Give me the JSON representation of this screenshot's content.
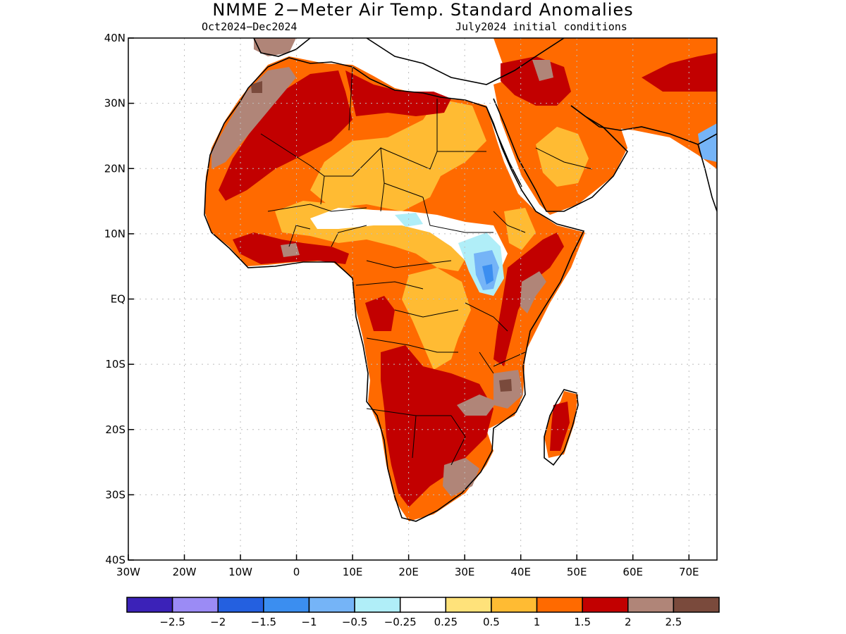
{
  "title": "NMME 2−Meter Air Temp. Standard Anomalies",
  "subtitle_left": "Oct2024−Dec2024",
  "subtitle_right": "July2024 initial conditions",
  "map": {
    "lon_range": [
      -30,
      75
    ],
    "lat_range": [
      -40,
      40
    ],
    "lat_ticks": [
      {
        "value": 40,
        "label": "40N"
      },
      {
        "value": 30,
        "label": "30N"
      },
      {
        "value": 20,
        "label": "20N"
      },
      {
        "value": 10,
        "label": "10N"
      },
      {
        "value": 0,
        "label": "EQ"
      },
      {
        "value": -10,
        "label": "10S"
      },
      {
        "value": -20,
        "label": "20S"
      },
      {
        "value": -30,
        "label": "30S"
      },
      {
        "value": -40,
        "label": "40S"
      }
    ],
    "lon_ticks": [
      {
        "value": -30,
        "label": "30W"
      },
      {
        "value": -20,
        "label": "20W"
      },
      {
        "value": -10,
        "label": "10W"
      },
      {
        "value": 0,
        "label": "0"
      },
      {
        "value": 10,
        "label": "10E"
      },
      {
        "value": 20,
        "label": "20E"
      },
      {
        "value": 30,
        "label": "30E"
      },
      {
        "value": 40,
        "label": "40E"
      },
      {
        "value": 50,
        "label": "50E"
      },
      {
        "value": 60,
        "label": "60E"
      },
      {
        "value": 70,
        "label": "70E"
      }
    ],
    "grid": true
  },
  "colorbar": {
    "colors": [
      "#3b22b8",
      "#9b8bf5",
      "#2460e0",
      "#3b8ef0",
      "#75b4f7",
      "#b0eef8",
      "#ffffff",
      "#ffe27a",
      "#ffbb33",
      "#ff6a00",
      "#c20000",
      "#b08578",
      "#7a4a3c"
    ],
    "labels": [
      "−2.5",
      "−2",
      "−1.5",
      "−1",
      "−0.5",
      "−0.25",
      "0.25",
      "0.5",
      "1",
      "1.5",
      "2",
      "2.5"
    ]
  }
}
